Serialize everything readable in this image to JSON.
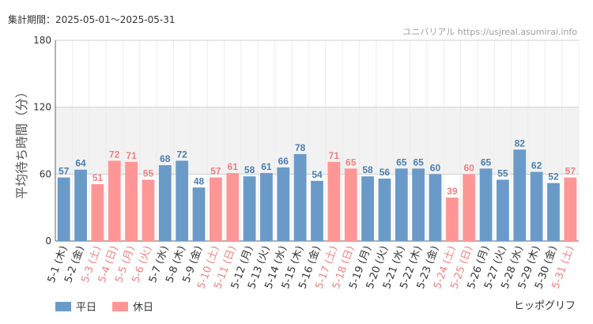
{
  "header": {
    "period_label": "集計期間：2025-05-01～2025-05-31",
    "site": "ユニバリアル  https://usjreal.asumirai.info"
  },
  "legend": {
    "weekday": "平日",
    "holiday": "休日"
  },
  "brand": "ヒッポグリフ",
  "colors": {
    "weekday": "#6a9ac8",
    "holiday": "#ff9696",
    "holiday_text": "#f08080",
    "band": "#f2f2f2"
  },
  "chart_data": {
    "type": "bar",
    "ylabel": "平均待ち時間（分）",
    "ylim": [
      0,
      180
    ],
    "yticks": [
      0,
      60,
      120,
      180
    ],
    "shaded_band": [
      60,
      120
    ],
    "categories": [
      "5-1 (木)",
      "5-2 (金)",
      "5-3 (土)",
      "5-4 (日)",
      "5-5 (月)",
      "5-6 (火)",
      "5-7 (水)",
      "5-8 (木)",
      "5-9 (金)",
      "5-10 (土)",
      "5-11 (日)",
      "5-12 (月)",
      "5-13 (火)",
      "5-14 (水)",
      "5-15 (木)",
      "5-16 (金)",
      "5-17 (土)",
      "5-18 (日)",
      "5-19 (月)",
      "5-20 (火)",
      "5-21 (水)",
      "5-22 (木)",
      "5-23 (金)",
      "5-24 (土)",
      "5-25 (日)",
      "5-26 (月)",
      "5-27 (火)",
      "5-28 (水)",
      "5-29 (木)",
      "5-30 (金)",
      "5-31 (土)"
    ],
    "values": [
      57,
      64,
      51,
      72,
      71,
      55,
      68,
      72,
      48,
      57,
      61,
      58,
      61,
      66,
      78,
      54,
      71,
      65,
      58,
      56,
      65,
      65,
      60,
      39,
      60,
      65,
      55,
      82,
      62,
      52,
      57
    ],
    "holiday": [
      false,
      false,
      true,
      true,
      true,
      true,
      false,
      false,
      false,
      true,
      true,
      false,
      false,
      false,
      false,
      false,
      true,
      true,
      false,
      false,
      false,
      false,
      false,
      true,
      true,
      false,
      false,
      false,
      false,
      false,
      true
    ]
  }
}
